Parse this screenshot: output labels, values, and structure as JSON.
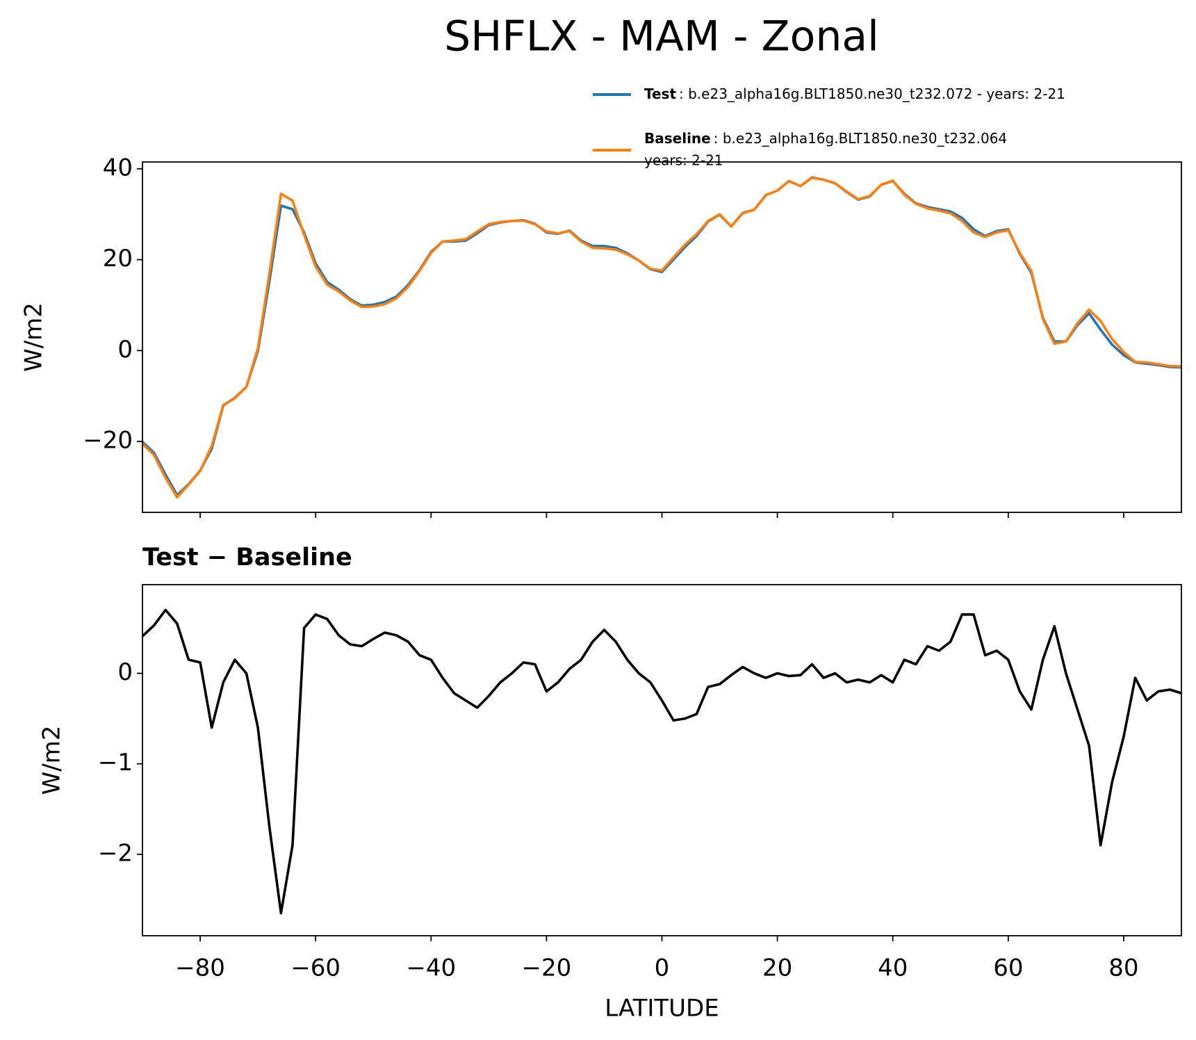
{
  "chart_data": [
    {
      "type": "line",
      "title": "SHFLX - MAM - Zonal",
      "ylabel": "W/m2",
      "xlim": [
        -90,
        90
      ],
      "xticks": [
        -80,
        -60,
        -40,
        -20,
        0,
        20,
        40,
        60,
        80
      ],
      "show_xtick_labels": false,
      "ylim": [
        -35.6,
        41.5
      ],
      "yticks": [
        {
          "value": -20,
          "label": "−20"
        },
        0,
        20,
        40
      ],
      "x": [
        -90,
        -88,
        -86,
        -84,
        -82,
        -80,
        -78,
        -76,
        -74,
        -72,
        -70,
        -68,
        -66,
        -64,
        -62,
        -60,
        -58,
        -56,
        -54,
        -52,
        -50,
        -48,
        -46,
        -44,
        -42,
        -40,
        -38,
        -36,
        -34,
        -32,
        -30,
        -28,
        -26,
        -24,
        -22,
        -20,
        -18,
        -16,
        -14,
        -12,
        -10,
        -8,
        -6,
        -4,
        -2,
        0,
        2,
        4,
        6,
        8,
        10,
        12,
        14,
        16,
        18,
        20,
        22,
        24,
        26,
        28,
        30,
        32,
        34,
        36,
        38,
        40,
        42,
        44,
        46,
        48,
        50,
        52,
        54,
        56,
        58,
        60,
        62,
        64,
        66,
        68,
        70,
        72,
        74,
        76,
        78,
        80,
        82,
        84,
        86,
        88,
        90
      ],
      "series": [
        {
          "name": "Test",
          "detail": [
            ": b.e23_alpha16g.BLT1850.ne30_t232.072 - years: 2-21"
          ],
          "color": "#1f77b4",
          "values": [
            -20.1,
            -22.5,
            -27.3,
            -31.8,
            -29.4,
            -26.4,
            -21.6,
            -12.1,
            -10.4,
            -8.0,
            -0.1,
            15.3,
            31.9,
            31.1,
            26.0,
            19.2,
            15.1,
            13.4,
            11.3,
            9.9,
            10.1,
            10.7,
            11.9,
            14.4,
            17.7,
            21.7,
            24.0,
            24.0,
            24.2,
            25.8,
            27.6,
            28.2,
            28.5,
            28.7,
            27.9,
            26.0,
            25.7,
            26.4,
            24.2,
            23.0,
            23.0,
            22.6,
            21.4,
            19.8,
            17.9,
            17.3,
            20.0,
            22.8,
            25.2,
            28.4,
            29.9,
            27.3,
            30.3,
            31.0,
            34.2,
            35.2,
            37.3,
            36.2,
            38.1,
            37.6,
            36.8,
            34.9,
            33.2,
            33.9,
            36.5,
            37.3,
            34.5,
            32.4,
            31.6,
            31.1,
            30.6,
            29.2,
            26.7,
            25.2,
            26.3,
            26.7,
            21.3,
            17.1,
            7.2,
            2.0,
            2.0,
            5.6,
            8.2,
            4.6,
            1.3,
            -1.0,
            -2.6,
            -2.9,
            -3.2,
            -3.6,
            -3.7
          ]
        },
        {
          "name": "Baseline",
          "detail": [
            ": b.e23_alpha16g.BLT1850.ne30_t232.064",
            "years: 2-21"
          ],
          "color": "#ff7f0e",
          "values": [
            -20.5,
            -23,
            -28,
            -32.3,
            -29.5,
            -26.5,
            -21,
            -12,
            -10.5,
            -8,
            0.5,
            17,
            34.5,
            33,
            25.5,
            18.5,
            14.5,
            13,
            11,
            9.6,
            9.7,
            10.2,
            11.5,
            14,
            17.5,
            21.5,
            24,
            24.2,
            24.5,
            26.2,
            27.8,
            28.3,
            28.5,
            28.6,
            27.8,
            26.2,
            25.8,
            26.3,
            24,
            22.6,
            22.5,
            22.2,
            21.2,
            19.8,
            18,
            17.6,
            20.5,
            23.3,
            25.6,
            28.5,
            30,
            27.3,
            30.2,
            31,
            34.2,
            35.2,
            37.3,
            36.2,
            38,
            37.6,
            36.8,
            35,
            33.3,
            34,
            36.5,
            37.4,
            34.3,
            32.3,
            31.3,
            30.8,
            30.2,
            28.5,
            26,
            25,
            26,
            26.5,
            21.5,
            17.5,
            7,
            1.5,
            2,
            6,
            9,
            6.5,
            2.5,
            -0.3,
            -2.5,
            -2.6,
            -3,
            -3.4,
            -3.5
          ]
        }
      ]
    },
    {
      "type": "line",
      "subtitle": "Test − Baseline",
      "ylabel": "W/m2",
      "xlabel": "LATITUDE",
      "xlim": [
        -90,
        90
      ],
      "show_xtick_labels": true,
      "xticks": [
        {
          "value": -80,
          "label": "−80"
        },
        {
          "value": -60,
          "label": "−60"
        },
        {
          "value": -40,
          "label": "−40"
        },
        {
          "value": -20,
          "label": "−20"
        },
        0,
        20,
        40,
        60,
        80
      ],
      "ylim": [
        -2.9,
        0.98
      ],
      "yticks": [
        {
          "value": -2,
          "label": "−2"
        },
        {
          "value": -1,
          "label": "−1"
        },
        0
      ],
      "x": [
        -90,
        -88,
        -86,
        -84,
        -82,
        -80,
        -78,
        -76,
        -74,
        -72,
        -70,
        -68,
        -66,
        -64,
        -62,
        -60,
        -58,
        -56,
        -54,
        -52,
        -50,
        -48,
        -46,
        -44,
        -42,
        -40,
        -38,
        -36,
        -34,
        -32,
        -30,
        -28,
        -26,
        -24,
        -22,
        -20,
        -18,
        -16,
        -14,
        -12,
        -10,
        -8,
        -6,
        -4,
        -2,
        0,
        2,
        4,
        6,
        8,
        10,
        12,
        14,
        16,
        18,
        20,
        22,
        24,
        26,
        28,
        30,
        32,
        34,
        36,
        38,
        40,
        42,
        44,
        46,
        48,
        50,
        52,
        54,
        56,
        58,
        60,
        62,
        64,
        66,
        68,
        70,
        72,
        74,
        76,
        78,
        80,
        82,
        84,
        86,
        88,
        90
      ],
      "series": [
        {
          "color": "#000000",
          "values": [
            0.41,
            0.53,
            0.7,
            0.55,
            0.15,
            0.12,
            -0.6,
            -0.1,
            0.15,
            0.0,
            -0.6,
            -1.7,
            -2.65,
            -1.9,
            0.5,
            0.65,
            0.6,
            0.42,
            0.32,
            0.3,
            0.38,
            0.45,
            0.42,
            0.35,
            0.2,
            0.15,
            -0.05,
            -0.22,
            -0.3,
            -0.38,
            -0.25,
            -0.1,
            0.0,
            0.12,
            0.1,
            -0.2,
            -0.1,
            0.05,
            0.15,
            0.35,
            0.48,
            0.35,
            0.15,
            0.0,
            -0.1,
            -0.3,
            -0.52,
            -0.5,
            -0.45,
            -0.15,
            -0.12,
            -0.02,
            0.07,
            0.0,
            -0.05,
            0.0,
            -0.03,
            -0.02,
            0.1,
            -0.05,
            0.0,
            -0.1,
            -0.07,
            -0.1,
            -0.02,
            -0.1,
            0.15,
            0.1,
            0.3,
            0.25,
            0.35,
            0.65,
            0.65,
            0.2,
            0.25,
            0.15,
            -0.2,
            -0.4,
            0.15,
            0.52,
            0.0,
            -0.4,
            -0.8,
            -1.9,
            -1.2,
            -0.7,
            -0.05,
            -0.3,
            -0.2,
            -0.18,
            -0.22
          ]
        }
      ]
    }
  ]
}
